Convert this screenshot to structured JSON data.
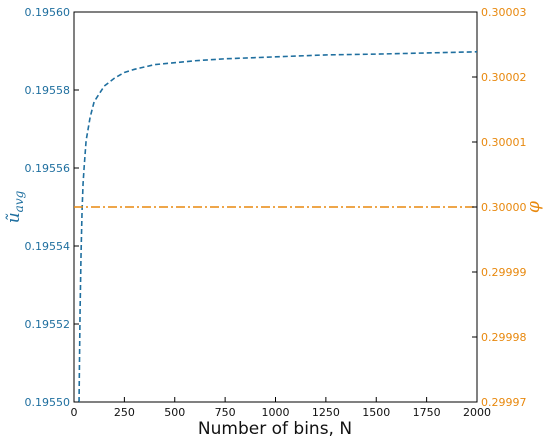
{
  "chart_data": {
    "type": "line",
    "xlabel": "Number of bins, N",
    "xlim": [
      0,
      2000
    ],
    "x_ticks": [
      "0",
      "250",
      "500",
      "750",
      "1000",
      "1250",
      "1500",
      "1750",
      "2000"
    ],
    "y_left": {
      "label": "ũ",
      "label_sub": "avg",
      "lim": [
        0.1955,
        0.1956
      ],
      "ticks": [
        "0.19550",
        "0.19552",
        "0.19554",
        "0.19556",
        "0.19558",
        "0.19560"
      ],
      "color": "#1f6f9f"
    },
    "y_right": {
      "label": "φ",
      "lim": [
        0.29997,
        0.30003
      ],
      "ticks": [
        "0.29997",
        "0.29998",
        "0.29999",
        "0.30000",
        "0.30001",
        "0.30002",
        "0.30003"
      ],
      "color": "#e8890f"
    },
    "series": [
      {
        "axis": "left",
        "style": "dashed",
        "color": "#1f6f9f",
        "x": [
          25,
          30,
          35,
          40,
          45,
          50,
          60,
          70,
          80,
          100,
          125,
          150,
          200,
          250,
          300,
          400,
          500,
          600,
          750,
          1000,
          1250,
          1500,
          1750,
          2000
        ],
        "y": [
          0.1955,
          0.195523,
          0.195538,
          0.195549,
          0.195556,
          0.19556,
          0.195567,
          0.19557,
          0.195573,
          0.195577,
          0.195579,
          0.195581,
          0.195583,
          0.1955845,
          0.1955853,
          0.1955865,
          0.195587,
          0.1955875,
          0.195588,
          0.1955885,
          0.195589,
          0.1955892,
          0.1955895,
          0.1955898
        ]
      },
      {
        "axis": "right",
        "style": "dashdot",
        "color": "#e8890f",
        "x": [
          0,
          2000
        ],
        "y": [
          0.3,
          0.3
        ]
      }
    ],
    "grid": false
  }
}
